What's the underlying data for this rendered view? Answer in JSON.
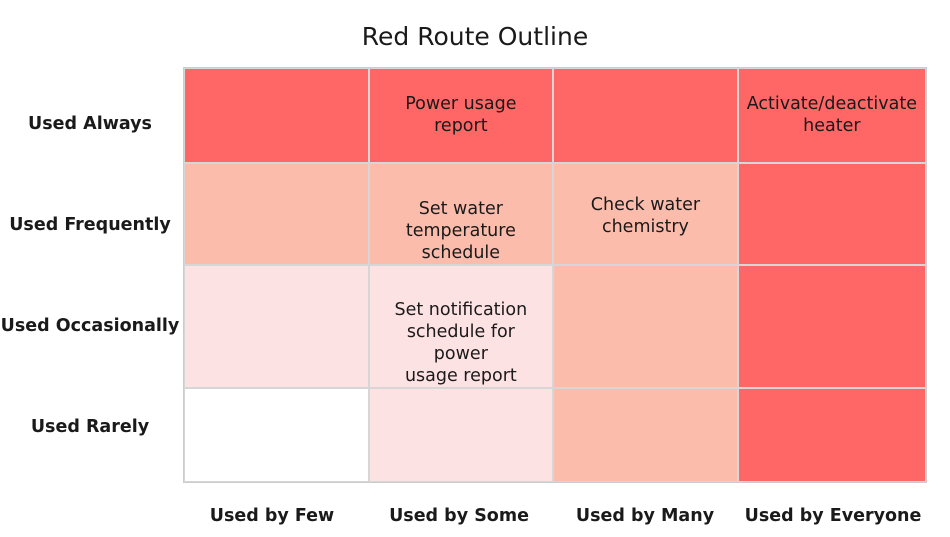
{
  "title": "Red Route Outline",
  "colors": {
    "high": "#ff6666",
    "medium": "#fbbcac",
    "low": "#fde2e3",
    "none": "#ffffff"
  },
  "rows": [
    "Used Always",
    "Used Frequently",
    "Used Occasionally",
    "Used Rarely"
  ],
  "columns": [
    "Used by Few",
    "Used by Some",
    "Used by Many",
    "Used by Everyone"
  ],
  "cells": [
    [
      {
        "text": "",
        "level": "high"
      },
      {
        "text": "Power usage report",
        "level": "high"
      },
      {
        "text": "",
        "level": "high"
      },
      {
        "text": "Activate/deactivate\nheater",
        "level": "high"
      }
    ],
    [
      {
        "text": "",
        "level": "medium"
      },
      {
        "text": "Set water\ntemperature\nschedule",
        "level": "medium"
      },
      {
        "text": "Check water\nchemistry",
        "level": "medium"
      },
      {
        "text": "",
        "level": "high"
      }
    ],
    [
      {
        "text": "",
        "level": "low"
      },
      {
        "text": "Set notification\nschedule for power\nusage report",
        "level": "low"
      },
      {
        "text": "",
        "level": "medium"
      },
      {
        "text": "",
        "level": "high"
      }
    ],
    [
      {
        "text": "",
        "level": "none"
      },
      {
        "text": "",
        "level": "low"
      },
      {
        "text": "",
        "level": "medium"
      },
      {
        "text": "",
        "level": "high"
      }
    ]
  ]
}
